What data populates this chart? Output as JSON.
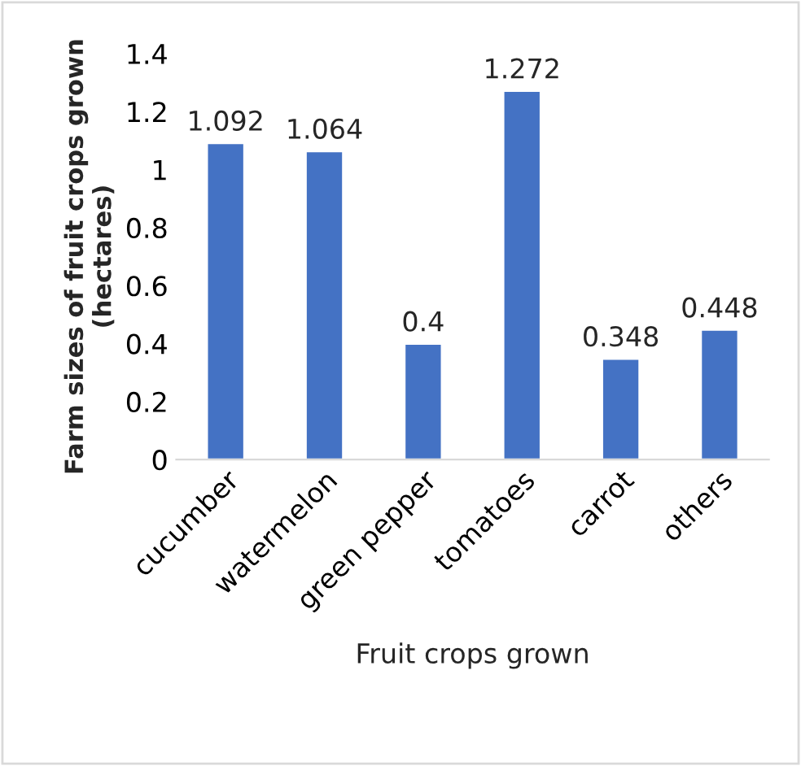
{
  "chart_data": {
    "type": "bar",
    "xlabel": "Fruit crops grown",
    "ylabel": "Farm sizes of fruit crops grown\n(hectares)",
    "categories": [
      "cucumber",
      "watermelon",
      "green pepper",
      "tomatoes",
      "carrot",
      "others"
    ],
    "values": [
      1.092,
      1.064,
      0.4,
      1.272,
      0.348,
      0.448
    ],
    "color": "#4472c4",
    "ylim": [
      0,
      1.4
    ],
    "yticks": [
      0,
      0.2,
      0.4,
      0.6,
      0.8,
      1,
      1.2,
      1.4
    ],
    "data_labels": true,
    "grid": false,
    "legend": false
  }
}
